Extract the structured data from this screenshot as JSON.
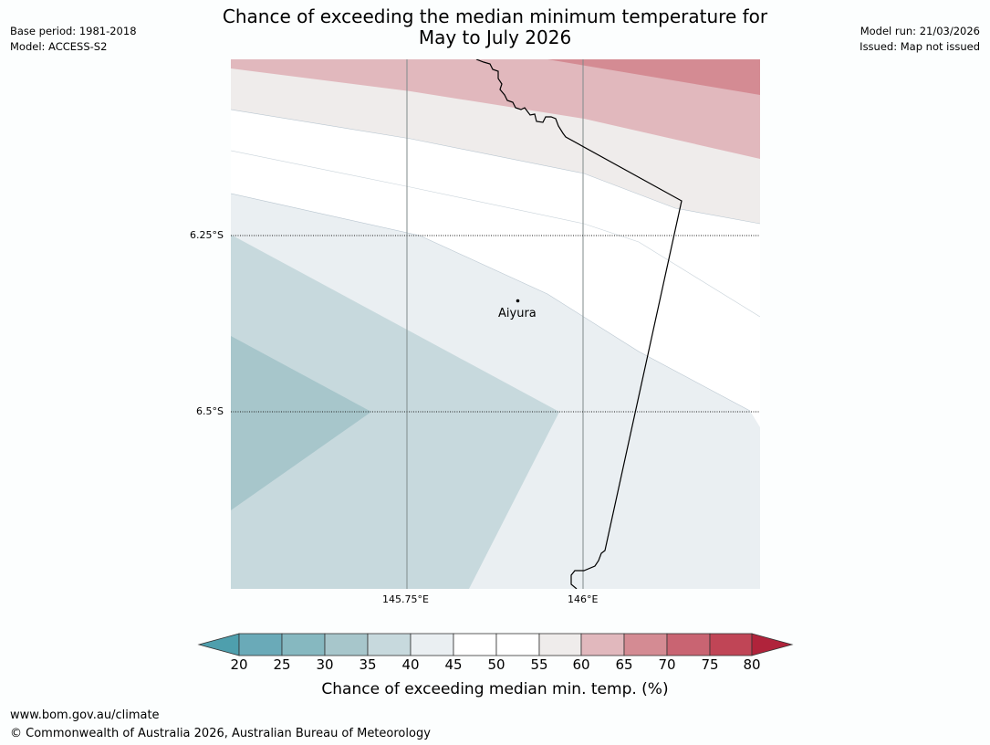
{
  "header": {
    "title_line1": "Chance of exceeding the median minimum temperature for",
    "title_line2": "May to July 2026",
    "base_period": "Base period: 1981-2018",
    "model": "Model: ACCESS-S2",
    "model_run": "Model run: 21/03/2026",
    "issued": "Issued: Map not issued"
  },
  "map": {
    "latitude_labels": [
      "6.25°S",
      "6.5°S"
    ],
    "longitude_labels": [
      "145.75°E",
      "146°E"
    ],
    "place_name": "Aiyura"
  },
  "colorbar": {
    "ticks": [
      "20",
      "25",
      "30",
      "35",
      "40",
      "45",
      "50",
      "55",
      "60",
      "65",
      "70",
      "75",
      "80"
    ],
    "title": "Chance of exceeding median min. temp. (%)",
    "colors": {
      "below20": "#4e9fad",
      "c20_25": "#6aaab8",
      "c25_30": "#86b8c0",
      "c30_35": "#a7c6cb",
      "c35_40": "#c7d9dd",
      "c40_45": "#eaeff2",
      "c45_55": "#ffffff",
      "c55_60": "#efeceb",
      "c60_65": "#e1b8bd",
      "c65_70": "#d48b93",
      "c70_75": "#c96472",
      "c75_80": "#c04556",
      "above80": "#b0233b"
    }
  },
  "footer": {
    "url": "www.bom.gov.au/climate",
    "copyright": "© Commonwealth of Australia 2026, Australian Bureau of Meteorology"
  }
}
